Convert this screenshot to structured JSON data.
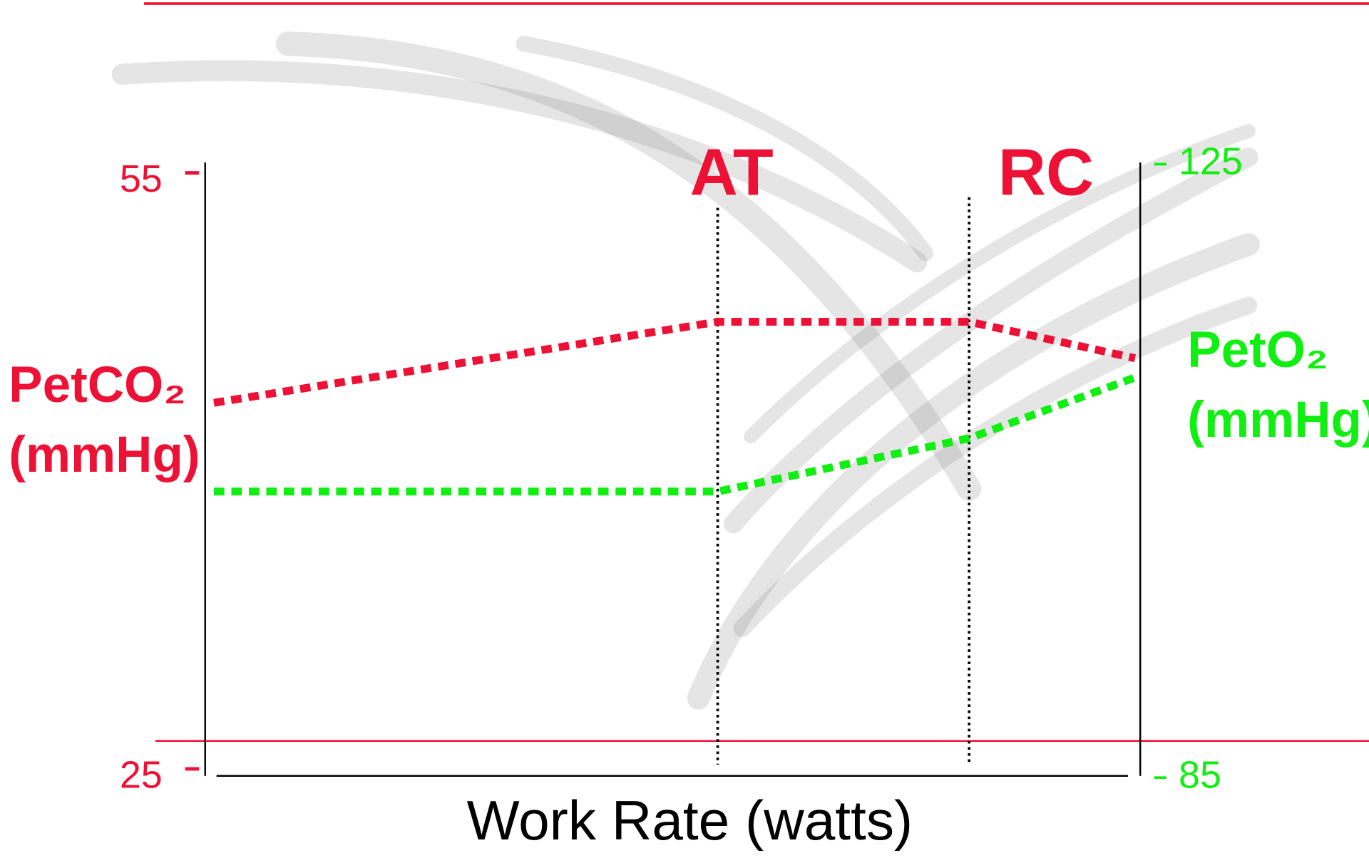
{
  "chart_data": {
    "type": "line",
    "categories": [
      null,
      "AT",
      "RC",
      null
    ],
    "xlabel": "Work Rate (watts)",
    "ylabel": [
      "PetCO₂",
      "(mmHg)"
    ],
    "y2label": [
      "PetO₂",
      "(mmHg)"
    ],
    "ylim": [
      25,
      55
    ],
    "yticks": [
      25,
      55
    ],
    "y2lim": [
      85,
      125
    ],
    "y2ticks": [
      85,
      125
    ],
    "series": [
      {
        "color": "#ee1136",
        "values": [
          43.4,
          47.4,
          47.4,
          45.6
        ]
      },
      {
        "color": "#11ee11",
        "axis": "y2",
        "values": [
          103.7,
          103.7,
          107.2,
          111.2
        ]
      }
    ]
  }
}
